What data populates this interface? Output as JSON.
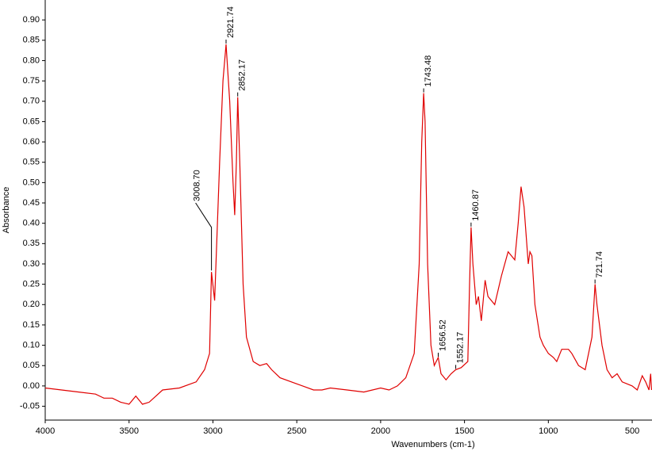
{
  "chart_data": {
    "type": "line",
    "xlabel": "Wavenumbers (cm-1)",
    "ylabel": "Absorbance",
    "color": "#e00000",
    "xlim": [
      4000,
      382
    ],
    "ylim": [
      -0.084,
      0.949
    ],
    "xticks": [
      4000,
      3500,
      3000,
      2500,
      2000,
      1500,
      1000,
      500
    ],
    "yticks": [
      -0.05,
      {
        "value": 0,
        "label": "0.00"
      },
      0.05,
      {
        "value": 0.1,
        "label": "0.10"
      },
      0.15,
      {
        "value": 0.2,
        "label": "0.20"
      },
      0.25,
      {
        "value": 0.3,
        "label": "0.30"
      },
      0.35,
      {
        "value": 0.4,
        "label": "0.40"
      },
      0.45,
      {
        "value": 0.5,
        "label": "0.50"
      },
      0.55,
      {
        "value": 0.6,
        "label": "0.60"
      },
      0.65,
      {
        "value": 0.7,
        "label": "0.70"
      },
      0.75,
      {
        "value": 0.8,
        "label": "0.80"
      },
      0.85,
      {
        "value": 0.9,
        "label": "0.90"
      }
    ],
    "x": [
      4000,
      3800,
      3700,
      3650,
      3600,
      3550,
      3500,
      3460,
      3420,
      3380,
      3300,
      3200,
      3100,
      3050,
      3020,
      3008.7,
      2990,
      2960,
      2940,
      2921.74,
      2900,
      2880,
      2870,
      2860,
      2852.17,
      2840,
      2820,
      2800,
      2760,
      2720,
      2680,
      2650,
      2600,
      2500,
      2400,
      2350,
      2300,
      2200,
      2100,
      2000,
      1950,
      1900,
      1850,
      1800,
      1770,
      1755,
      1743.48,
      1735,
      1720,
      1700,
      1680,
      1656.52,
      1640,
      1610,
      1580,
      1552.17,
      1520,
      1480,
      1470,
      1460.87,
      1450,
      1430,
      1417,
      1400,
      1377,
      1360,
      1320,
      1280,
      1240,
      1200,
      1180,
      1163,
      1145,
      1120,
      1110,
      1098,
      1080,
      1050,
      1030,
      1000,
      970,
      950,
      920,
      880,
      860,
      820,
      780,
      740,
      721.74,
      710,
      680,
      650,
      620,
      590,
      560,
      500,
      470,
      440,
      420,
      400,
      390,
      385
    ],
    "values": [
      -0.005,
      -0.015,
      -0.02,
      -0.03,
      -0.03,
      -0.04,
      -0.045,
      -0.025,
      -0.045,
      -0.04,
      -0.01,
      -0.005,
      0.01,
      0.04,
      0.08,
      0.28,
      0.21,
      0.55,
      0.75,
      0.84,
      0.7,
      0.5,
      0.42,
      0.55,
      0.71,
      0.55,
      0.25,
      0.12,
      0.06,
      0.05,
      0.055,
      0.04,
      0.02,
      0.005,
      -0.01,
      -0.01,
      -0.005,
      -0.01,
      -0.015,
      -0.005,
      -0.01,
      0.0,
      0.02,
      0.08,
      0.3,
      0.6,
      0.72,
      0.65,
      0.3,
      0.1,
      0.05,
      0.07,
      0.03,
      0.015,
      0.03,
      0.04,
      0.045,
      0.06,
      0.25,
      0.39,
      0.3,
      0.2,
      0.22,
      0.16,
      0.26,
      0.22,
      0.2,
      0.27,
      0.33,
      0.31,
      0.4,
      0.49,
      0.44,
      0.3,
      0.33,
      0.32,
      0.2,
      0.12,
      0.1,
      0.08,
      0.07,
      0.06,
      0.09,
      0.09,
      0.08,
      0.05,
      0.04,
      0.12,
      0.25,
      0.2,
      0.1,
      0.04,
      0.02,
      0.03,
      0.01,
      0.0,
      -0.01,
      0.025,
      0.01,
      -0.01,
      0.03,
      -0.01
    ],
    "annotations": [
      {
        "text": "3008.70",
        "x": 3008.7,
        "y": 0.28
      },
      {
        "text": "2921.74",
        "x": 2921.74,
        "y": 0.84
      },
      {
        "text": "2852.17",
        "x": 2852.17,
        "y": 0.71
      },
      {
        "text": "1743.48",
        "x": 1743.48,
        "y": 0.72
      },
      {
        "text": "1656.52",
        "x": 1656.52,
        "y": 0.07
      },
      {
        "text": "1552.17",
        "x": 1552.17,
        "y": 0.04
      },
      {
        "text": "1460.87",
        "x": 1460.87,
        "y": 0.39
      },
      {
        "text": "721.74",
        "x": 721.74,
        "y": 0.25
      }
    ]
  }
}
